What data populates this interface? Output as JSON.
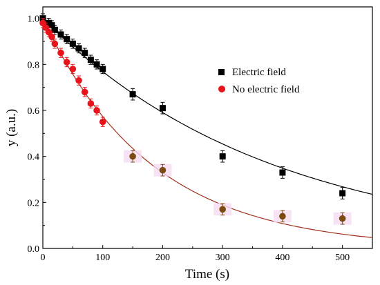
{
  "chart_data": {
    "type": "scatter",
    "xlabel": "Time (s)",
    "ylabel": "y (a.u.)",
    "xlim": [
      0,
      550
    ],
    "ylim": [
      0,
      1.05
    ],
    "x_ticks": [
      "0",
      "100",
      "200",
      "300",
      "400",
      "500"
    ],
    "y_ticks": [
      "0.0",
      "0.2",
      "0.4",
      "0.6",
      "0.8",
      "1.0"
    ],
    "grid": false,
    "legend_position": "top-right",
    "series": [
      {
        "name": "Electric field",
        "marker": "square",
        "color": "#000000",
        "points": [
          {
            "x": 0,
            "y": 1.0,
            "err": 0.02
          },
          {
            "x": 10,
            "y": 0.98,
            "err": 0.02
          },
          {
            "x": 15,
            "y": 0.97,
            "err": 0.02
          },
          {
            "x": 20,
            "y": 0.95,
            "err": 0.02
          },
          {
            "x": 30,
            "y": 0.93,
            "err": 0.02
          },
          {
            "x": 40,
            "y": 0.91,
            "err": 0.02
          },
          {
            "x": 50,
            "y": 0.89,
            "err": 0.02
          },
          {
            "x": 60,
            "y": 0.87,
            "err": 0.02
          },
          {
            "x": 70,
            "y": 0.85,
            "err": 0.02
          },
          {
            "x": 80,
            "y": 0.82,
            "err": 0.02
          },
          {
            "x": 90,
            "y": 0.8,
            "err": 0.02
          },
          {
            "x": 100,
            "y": 0.78,
            "err": 0.02
          },
          {
            "x": 150,
            "y": 0.67,
            "err": 0.025
          },
          {
            "x": 200,
            "y": 0.61,
            "err": 0.025
          },
          {
            "x": 300,
            "y": 0.4,
            "err": 0.025
          },
          {
            "x": 400,
            "y": 0.33,
            "err": 0.025
          },
          {
            "x": 500,
            "y": 0.24,
            "err": 0.025
          }
        ],
        "fit": {
          "a": 1.0,
          "tau": 380,
          "color": "#000000"
        }
      },
      {
        "name": "No electric field",
        "marker": "circle",
        "color": "#e8141c",
        "late_color": "#7a4a10",
        "points": [
          {
            "x": 0,
            "y": 0.98,
            "err": 0.02
          },
          {
            "x": 5,
            "y": 0.96,
            "err": 0.02
          },
          {
            "x": 10,
            "y": 0.94,
            "err": 0.02
          },
          {
            "x": 15,
            "y": 0.92,
            "err": 0.02
          },
          {
            "x": 20,
            "y": 0.89,
            "err": 0.02
          },
          {
            "x": 30,
            "y": 0.85,
            "err": 0.02
          },
          {
            "x": 40,
            "y": 0.81,
            "err": 0.02
          },
          {
            "x": 50,
            "y": 0.78,
            "err": 0.02
          },
          {
            "x": 60,
            "y": 0.73,
            "err": 0.02
          },
          {
            "x": 70,
            "y": 0.68,
            "err": 0.02
          },
          {
            "x": 80,
            "y": 0.63,
            "err": 0.02
          },
          {
            "x": 90,
            "y": 0.6,
            "err": 0.02
          },
          {
            "x": 100,
            "y": 0.55,
            "err": 0.02
          },
          {
            "x": 150,
            "y": 0.4,
            "err": 0.025
          },
          {
            "x": 200,
            "y": 0.34,
            "err": 0.025
          },
          {
            "x": 300,
            "y": 0.17,
            "err": 0.025
          },
          {
            "x": 400,
            "y": 0.14,
            "err": 0.025
          },
          {
            "x": 500,
            "y": 0.13,
            "err": 0.025
          }
        ],
        "fit": {
          "a": 1.0,
          "tau": 180,
          "color": "#a0301c"
        }
      }
    ]
  }
}
